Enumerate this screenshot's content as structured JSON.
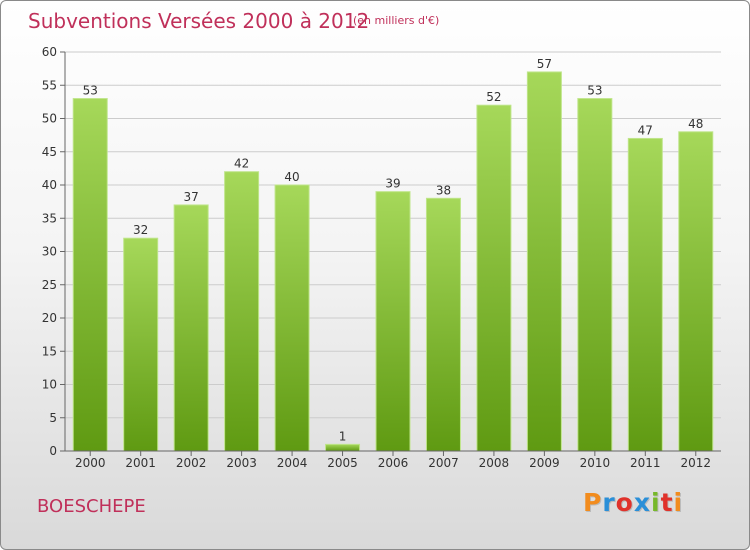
{
  "header": {
    "title": "Subventions Versées 2000 à 2012",
    "subtitle": "(en milliers d'€)"
  },
  "footer": {
    "city": "BOESCHEPE",
    "logo_text": "Proxiti"
  },
  "colors": {
    "title": "#c0305a",
    "bar_light": "#a6d85a",
    "bar_dark": "#5f9a12",
    "grid": "#cccccc",
    "logo": [
      "#f28c1e",
      "#2a8fd8",
      "#e0322b",
      "#2a8fd8",
      "#77b82a",
      "#e0322b",
      "#f28c1e"
    ]
  },
  "chart_data": {
    "type": "bar",
    "title": "Subventions Versées 2000 à 2012",
    "ylabel": "en milliers d'€",
    "xlabel": "",
    "categories": [
      "2000",
      "2001",
      "2002",
      "2003",
      "2004",
      "2005",
      "2006",
      "2007",
      "2008",
      "2009",
      "2010",
      "2011",
      "2012"
    ],
    "values": [
      53,
      32,
      37,
      42,
      40,
      1,
      39,
      38,
      52,
      57,
      53,
      47,
      48
    ],
    "ylim": [
      0,
      60
    ],
    "yticks": [
      0,
      5,
      10,
      15,
      20,
      25,
      30,
      35,
      40,
      45,
      50,
      55,
      60
    ],
    "grid": true
  }
}
